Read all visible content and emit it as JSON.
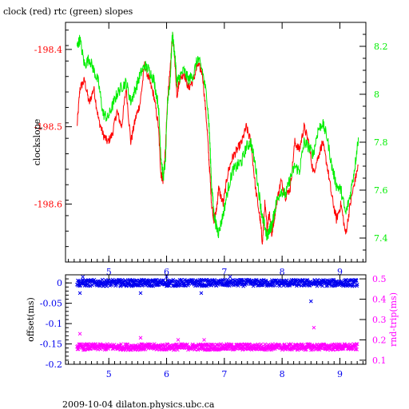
{
  "title": "clock (red) rtc (green) slopes",
  "footer": "2009-10-04 dilaton.physics.ubc.ca",
  "colors": {
    "red": "#ff0000",
    "green": "#00ee00",
    "blue": "#0000ee",
    "magenta": "#ff00ff",
    "axis": "#000000"
  },
  "chart_data": [
    {
      "type": "line",
      "title": "clock (red) rtc (green) slopes",
      "xlabel": "",
      "ylabel": "clockslope",
      "xlim": [
        4.25,
        9.45
      ],
      "ylim": [
        -198.675,
        -198.365
      ],
      "ylim_right": [
        7.3,
        8.3
      ],
      "left_ticks": [
        "-198.4",
        "-198.5",
        "-198.6"
      ],
      "left_tick_values": [
        -198.4,
        -198.5,
        -198.6
      ],
      "right_ticks": [
        "8.2",
        "8",
        "7.8",
        "7.6",
        "7.4"
      ],
      "right_tick_values": [
        8.2,
        8.0,
        7.8,
        7.6,
        7.4
      ],
      "x_ticks": [
        "5",
        "6",
        "7",
        "8",
        "9"
      ],
      "x_tick_values": [
        5,
        6,
        7,
        8,
        9
      ],
      "series": [
        {
          "color": "red",
          "axis": "left",
          "x": [
            4.45,
            4.5,
            4.58,
            4.66,
            4.74,
            4.82,
            4.9,
            4.98,
            5.06,
            5.14,
            5.22,
            5.3,
            5.38,
            5.46,
            5.54,
            5.62,
            5.7,
            5.78,
            5.86,
            5.9,
            5.94,
            5.98,
            6.02,
            6.06,
            6.1,
            6.14,
            6.18,
            6.22,
            6.3,
            6.38,
            6.46,
            6.54,
            6.62,
            6.7,
            6.74,
            6.78,
            6.82,
            6.86,
            6.9,
            6.98,
            7.06,
            7.14,
            7.22,
            7.3,
            7.38,
            7.46,
            7.54,
            7.62,
            7.66,
            7.7,
            7.74,
            7.78,
            7.82,
            7.86,
            7.9,
            7.98,
            8.06,
            8.14,
            8.22,
            8.3,
            8.38,
            8.46,
            8.54,
            8.62,
            8.7,
            8.78,
            8.86,
            8.94,
            9.02,
            9.1,
            9.18,
            9.26,
            9.32
          ],
          "y": [
            -198.5,
            -198.45,
            -198.44,
            -198.47,
            -198.45,
            -198.49,
            -198.51,
            -198.52,
            -198.51,
            -198.48,
            -198.5,
            -198.45,
            -198.52,
            -198.49,
            -198.47,
            -198.42,
            -198.44,
            -198.46,
            -198.5,
            -198.56,
            -198.57,
            -198.53,
            -198.46,
            -198.43,
            -198.38,
            -198.41,
            -198.46,
            -198.44,
            -198.43,
            -198.45,
            -198.44,
            -198.42,
            -198.43,
            -198.5,
            -198.55,
            -198.6,
            -198.62,
            -198.61,
            -198.58,
            -198.6,
            -198.56,
            -198.54,
            -198.53,
            -198.52,
            -198.5,
            -198.52,
            -198.58,
            -198.62,
            -198.65,
            -198.6,
            -198.63,
            -198.61,
            -198.64,
            -198.62,
            -198.6,
            -198.57,
            -198.59,
            -198.58,
            -198.52,
            -198.53,
            -198.5,
            -198.52,
            -198.56,
            -198.54,
            -198.52,
            -198.55,
            -198.59,
            -198.62,
            -198.6,
            -198.64,
            -198.6,
            -198.57,
            -198.55
          ]
        },
        {
          "color": "green",
          "axis": "right",
          "x": [
            4.45,
            4.5,
            4.58,
            4.66,
            4.74,
            4.82,
            4.9,
            4.98,
            5.06,
            5.14,
            5.22,
            5.3,
            5.38,
            5.46,
            5.54,
            5.62,
            5.7,
            5.78,
            5.86,
            5.9,
            5.94,
            5.98,
            6.02,
            6.06,
            6.1,
            6.14,
            6.18,
            6.22,
            6.3,
            6.38,
            6.46,
            6.54,
            6.62,
            6.7,
            6.74,
            6.78,
            6.82,
            6.86,
            6.9,
            6.98,
            7.06,
            7.14,
            7.22,
            7.3,
            7.38,
            7.46,
            7.54,
            7.62,
            7.66,
            7.7,
            7.74,
            7.78,
            7.82,
            7.86,
            7.9,
            7.98,
            8.06,
            8.14,
            8.22,
            8.3,
            8.38,
            8.46,
            8.54,
            8.62,
            8.7,
            8.78,
            8.86,
            8.94,
            9.02,
            9.1,
            9.18,
            9.26,
            9.32
          ],
          "y": [
            8.2,
            8.23,
            8.12,
            8.15,
            8.1,
            8.05,
            7.92,
            7.9,
            7.95,
            8.0,
            8.03,
            8.05,
            7.97,
            8.02,
            8.08,
            8.12,
            8.1,
            8.06,
            7.95,
            7.75,
            7.65,
            7.72,
            7.98,
            8.05,
            8.25,
            8.17,
            8.05,
            8.07,
            8.1,
            8.06,
            8.08,
            8.15,
            8.1,
            7.98,
            7.85,
            7.62,
            7.5,
            7.45,
            7.42,
            7.5,
            7.6,
            7.68,
            7.7,
            7.72,
            7.78,
            7.8,
            7.7,
            7.55,
            7.48,
            7.45,
            7.4,
            7.44,
            7.45,
            7.5,
            7.55,
            7.6,
            7.58,
            7.65,
            7.7,
            7.68,
            7.8,
            7.78,
            7.75,
            7.85,
            7.88,
            7.82,
            7.7,
            7.62,
            7.6,
            7.5,
            7.58,
            7.7,
            7.82
          ]
        }
      ]
    },
    {
      "type": "scatter",
      "xlabel": "",
      "ylabel": "offset(ms)",
      "ylabel_right": "rnd-trip(ms)",
      "xlim": [
        4.25,
        9.45
      ],
      "ylim": [
        -0.2,
        0.02
      ],
      "ylim_right": [
        0.08,
        0.52
      ],
      "left_ticks": [
        "0",
        "-0.05",
        "-0.1",
        "-0.15",
        "-0.2"
      ],
      "left_tick_values": [
        0,
        -0.05,
        -0.1,
        -0.15,
        -0.2
      ],
      "right_ticks": [
        "0.5",
        "0.4",
        "0.3",
        "0.2",
        "0.1"
      ],
      "right_tick_values": [
        0.5,
        0.4,
        0.3,
        0.2,
        0.1
      ],
      "x_ticks": [
        "5",
        "6",
        "7",
        "8",
        "9"
      ],
      "x_tick_values": [
        5,
        6,
        7,
        8,
        9
      ],
      "series": [
        {
          "color": "blue",
          "axis": "left",
          "band": {
            "x_range": [
              4.45,
              9.3
            ],
            "y_center": 0.0,
            "y_spread": 0.008
          },
          "outliers_x": [
            4.5,
            4.55,
            5.55,
            6.0,
            6.6,
            7.1,
            8.5
          ],
          "outliers_y": [
            -0.025,
            0.015,
            -0.025,
            0.015,
            -0.025,
            0.015,
            -0.045
          ]
        },
        {
          "color": "magenta",
          "axis": "right",
          "band": {
            "x_range": [
              4.45,
              9.3
            ],
            "y_center": 0.165,
            "y_spread": 0.015
          },
          "outliers_x": [
            4.5,
            5.55,
            6.2,
            6.65,
            8.55
          ],
          "outliers_y": [
            0.23,
            0.21,
            0.2,
            0.2,
            0.26
          ]
        }
      ]
    }
  ]
}
